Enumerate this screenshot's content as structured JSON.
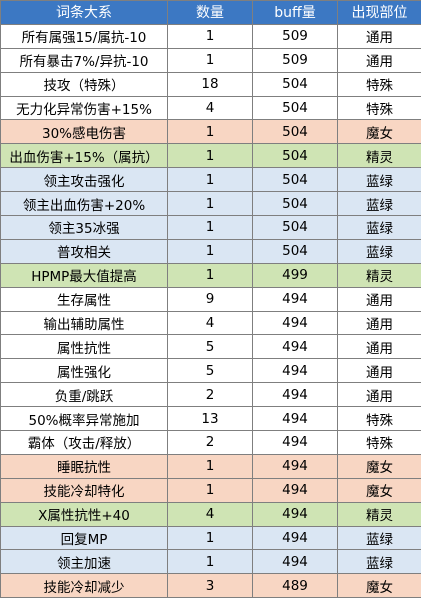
{
  "table": {
    "headers": [
      "词条大系",
      "数量",
      "buff量",
      "出现部位"
    ],
    "rows": [
      {
        "name": "所有属强15/属抗-10",
        "count": "1",
        "buff": "509",
        "slot": "通用",
        "color": "#ffffff"
      },
      {
        "name": "所有暴击7%/异抗-10",
        "count": "1",
        "buff": "509",
        "slot": "通用",
        "color": "#ffffff"
      },
      {
        "name": "技攻（特殊）",
        "count": "18",
        "buff": "504",
        "slot": "特殊",
        "color": "#ffffff"
      },
      {
        "name": "无力化异常伤害+15%",
        "count": "4",
        "buff": "504",
        "slot": "特殊",
        "color": "#ffffff"
      },
      {
        "name": "30%感电伤害",
        "count": "1",
        "buff": "504",
        "slot": "魔女",
        "color": "#f8d6c3"
      },
      {
        "name": "出血伤害+15%（属抗）",
        "count": "1",
        "buff": "504",
        "slot": "精灵",
        "color": "#cfe4b4"
      },
      {
        "name": "领主攻击强化",
        "count": "1",
        "buff": "504",
        "slot": "蓝绿",
        "color": "#dae6f3"
      },
      {
        "name": "领主出血伤害+20%",
        "count": "1",
        "buff": "504",
        "slot": "蓝绿",
        "color": "#dae6f3"
      },
      {
        "name": "领主35冰强",
        "count": "1",
        "buff": "504",
        "slot": "蓝绿",
        "color": "#dae6f3"
      },
      {
        "name": "普攻相关",
        "count": "1",
        "buff": "504",
        "slot": "蓝绿",
        "color": "#dae6f3"
      },
      {
        "name": "HPMP最大值提高",
        "count": "1",
        "buff": "499",
        "slot": "精灵",
        "color": "#cfe4b4"
      },
      {
        "name": "生存属性",
        "count": "9",
        "buff": "494",
        "slot": "通用",
        "color": "#ffffff"
      },
      {
        "name": "输出辅助属性",
        "count": "4",
        "buff": "494",
        "slot": "通用",
        "color": "#ffffff"
      },
      {
        "name": "属性抗性",
        "count": "5",
        "buff": "494",
        "slot": "通用",
        "color": "#ffffff"
      },
      {
        "name": "属性强化",
        "count": "5",
        "buff": "494",
        "slot": "通用",
        "color": "#ffffff"
      },
      {
        "name": "负重/跳跃",
        "count": "2",
        "buff": "494",
        "slot": "通用",
        "color": "#ffffff"
      },
      {
        "name": "50%概率异常施加",
        "count": "13",
        "buff": "494",
        "slot": "特殊",
        "color": "#ffffff"
      },
      {
        "name": "霸体（攻击/释放）",
        "count": "2",
        "buff": "494",
        "slot": "特殊",
        "color": "#ffffff"
      },
      {
        "name": "睡眠抗性",
        "count": "1",
        "buff": "494",
        "slot": "魔女",
        "color": "#f8d6c3"
      },
      {
        "name": "技能冷却特化",
        "count": "1",
        "buff": "494",
        "slot": "魔女",
        "color": "#f8d6c3"
      },
      {
        "name": "X属性抗性+40",
        "count": "4",
        "buff": "494",
        "slot": "精灵",
        "color": "#cfe4b4"
      },
      {
        "name": "回复MP",
        "count": "1",
        "buff": "494",
        "slot": "蓝绿",
        "color": "#dae6f3"
      },
      {
        "name": "领主加速",
        "count": "1",
        "buff": "494",
        "slot": "蓝绿",
        "color": "#dae6f3"
      },
      {
        "name": "技能冷却减少",
        "count": "3",
        "buff": "489",
        "slot": "魔女",
        "color": "#f8d6c3"
      }
    ]
  },
  "colors": {
    "header_bg": "#3c78c3",
    "header_text": "#ffffff",
    "border": "#7f7f7f",
    "row_white": "#ffffff",
    "row_peach": "#f8d6c3",
    "row_green": "#cfe4b4",
    "row_blue": "#dae6f3"
  }
}
